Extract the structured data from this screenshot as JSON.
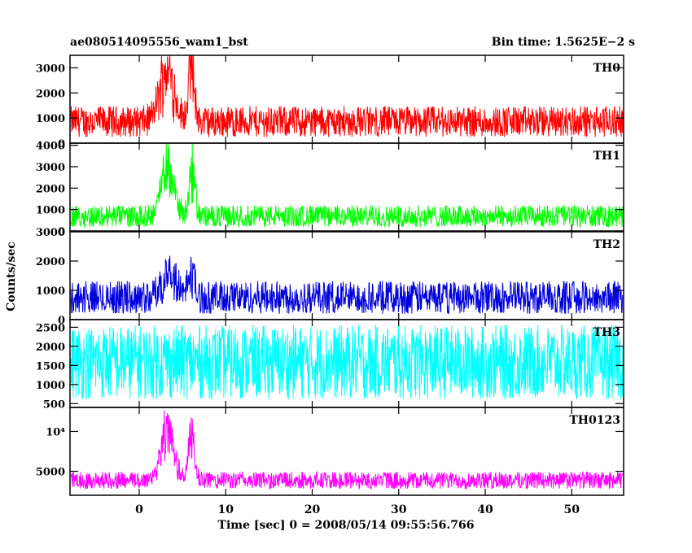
{
  "header": {
    "title": "ae080514095556_wam1_bst",
    "bin_time": "Bin time: 1.5625E−2 s"
  },
  "axes": {
    "xlabel": "Time [sec] 0 = 2008/05/14 09:55:56.766",
    "ylabel": "Counts/sec"
  },
  "chart_data": {
    "type": "line",
    "x": {
      "min": -8,
      "max": 56,
      "ticks": [
        0,
        10,
        20,
        30,
        40,
        50
      ]
    },
    "panels": [
      {
        "name": "TH0",
        "color": "#ff0000",
        "ylim": [
          0,
          3500
        ],
        "yticks": [
          0,
          1000,
          2000,
          3000
        ],
        "ytick_labels": [
          "0",
          "1000",
          "2000",
          "3000"
        ],
        "baseline": 800,
        "noise_lo": 0.3,
        "noise_hi": 1.85,
        "bursts": [
          {
            "t": 3.2,
            "width": 1.2,
            "amp": 2200
          },
          {
            "t": 6.0,
            "width": 0.5,
            "amp": 2500
          }
        ]
      },
      {
        "name": "TH1",
        "color": "#00ff00",
        "ylim": [
          0,
          4100
        ],
        "yticks": [
          0,
          1000,
          2000,
          3000,
          4000
        ],
        "ytick_labels": [
          "0",
          "1000",
          "2000",
          "3000",
          "4000"
        ],
        "baseline": 600,
        "noise_lo": 0.3,
        "noise_hi": 2.0,
        "bursts": [
          {
            "t": 3.3,
            "width": 1.0,
            "amp": 2800
          },
          {
            "t": 6.1,
            "width": 0.5,
            "amp": 2300
          }
        ]
      },
      {
        "name": "TH2",
        "color": "#0000dd",
        "ylim": [
          0,
          3000
        ],
        "yticks": [
          0,
          1000,
          2000,
          3000
        ],
        "ytick_labels": [
          "0",
          "1000",
          "2000",
          "3000"
        ],
        "baseline": 800,
        "noise_lo": 0.25,
        "noise_hi": 1.65,
        "bursts": [
          {
            "t": 3.5,
            "width": 1.2,
            "amp": 900
          },
          {
            "t": 6.0,
            "width": 0.5,
            "amp": 1000
          }
        ]
      },
      {
        "name": "TH3",
        "color": "#00ffff",
        "ylim": [
          400,
          2700
        ],
        "yticks": [
          500,
          1000,
          1500,
          2000,
          2500
        ],
        "ytick_labels": [
          "500",
          "1000",
          "1500",
          "2000",
          "2500"
        ],
        "baseline": 1350,
        "noise_lo": 0.45,
        "noise_hi": 1.9,
        "bursts": []
      },
      {
        "name": "TH0123",
        "color": "#ff00ff",
        "ylim": [
          2000,
          13000
        ],
        "yticks": [
          5000,
          10000
        ],
        "ytick_labels": [
          "5000",
          "10⁴"
        ],
        "baseline": 3300,
        "noise_lo": 0.85,
        "noise_hi": 1.5,
        "bursts": [
          {
            "t": 3.2,
            "width": 1.1,
            "amp": 6500
          },
          {
            "t": 6.0,
            "width": 0.5,
            "amp": 6000
          }
        ]
      }
    ]
  }
}
